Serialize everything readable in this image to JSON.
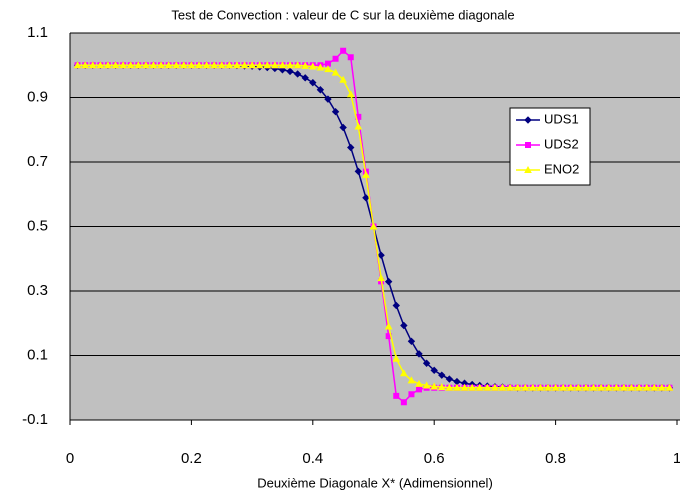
{
  "chart_data": {
    "type": "line",
    "title": "Test de Convection : valeur de C sur la deuxième diagonale",
    "x_label": "Deuxième Diagonale X* (Adimensionnel)",
    "x": [
      0.0125,
      0.025,
      0.0375,
      0.05,
      0.0625,
      0.075,
      0.0875,
      0.1,
      0.1125,
      0.125,
      0.1375,
      0.15,
      0.1625,
      0.175,
      0.1875,
      0.2,
      0.2125,
      0.225,
      0.2375,
      0.25,
      0.2625,
      0.275,
      0.2875,
      0.3,
      0.3125,
      0.325,
      0.3375,
      0.35,
      0.3625,
      0.375,
      0.3875,
      0.4,
      0.4125,
      0.425,
      0.4375,
      0.45,
      0.4625,
      0.475,
      0.4875,
      0.5,
      0.5125,
      0.525,
      0.5375,
      0.55,
      0.5625,
      0.575,
      0.5875,
      0.6,
      0.6125,
      0.625,
      0.6375,
      0.65,
      0.6625,
      0.675,
      0.6875,
      0.7,
      0.7125,
      0.725,
      0.7375,
      0.75,
      0.7625,
      0.775,
      0.7875,
      0.8,
      0.8125,
      0.825,
      0.8375,
      0.85,
      0.8625,
      0.875,
      0.8875,
      0.9,
      0.9125,
      0.925,
      0.9375,
      0.95,
      0.9625,
      0.975,
      0.9875
    ],
    "series": [
      {
        "name": "UDS1",
        "color": "#000080",
        "marker": "diamond",
        "values": [
          1,
          1,
          1,
          1,
          1,
          1,
          1,
          1,
          1,
          1,
          1,
          1,
          1,
          1,
          1,
          1,
          1,
          1,
          1,
          1,
          1,
          0.999,
          0.998,
          0.997,
          0.995,
          0.993,
          0.99,
          0.986,
          0.981,
          0.973,
          0.961,
          0.946,
          0.924,
          0.895,
          0.856,
          0.807,
          0.745,
          0.671,
          0.589,
          0.5,
          0.411,
          0.329,
          0.255,
          0.193,
          0.144,
          0.105,
          0.076,
          0.054,
          0.039,
          0.027,
          0.019,
          0.014,
          0.01,
          0.007,
          0.005,
          0.003,
          0.002,
          0.001,
          0,
          0,
          0,
          0,
          0,
          0,
          0,
          0,
          0,
          0,
          0,
          0,
          0,
          0,
          0,
          0,
          0,
          0,
          0,
          0,
          0
        ]
      },
      {
        "name": "UDS2",
        "color": "#ff00ff",
        "marker": "square",
        "values": [
          1,
          1,
          1,
          1,
          1,
          1,
          1,
          1,
          1,
          1,
          1,
          1,
          1,
          1,
          1,
          1,
          1,
          1,
          1,
          1,
          1,
          1,
          1,
          1,
          1,
          1,
          1,
          1,
          1,
          1,
          1,
          1,
          1,
          1.005,
          1.02,
          1.045,
          1.025,
          0.84,
          0.67,
          0.5,
          0.33,
          0.16,
          -0.025,
          -0.045,
          -0.02,
          -0.005,
          0,
          0,
          0,
          0,
          0,
          0,
          0,
          0,
          0,
          0,
          0,
          0,
          0,
          0,
          0,
          0,
          0,
          0,
          0,
          0,
          0,
          0,
          0,
          0,
          0,
          0,
          0,
          0,
          0,
          0,
          0,
          0,
          0
        ]
      },
      {
        "name": "ENO2",
        "color": "#ffff00",
        "marker": "triangle",
        "values": [
          1,
          1,
          1,
          1,
          1,
          1,
          1,
          1,
          1,
          1,
          1,
          1,
          1,
          1,
          1,
          1,
          1,
          1,
          1,
          1,
          1,
          1,
          1,
          1,
          1,
          1,
          1,
          1,
          1,
          1,
          0.998,
          0.996,
          0.993,
          0.988,
          0.977,
          0.955,
          0.91,
          0.81,
          0.66,
          0.5,
          0.34,
          0.19,
          0.09,
          0.045,
          0.023,
          0.012,
          0.007,
          0.004,
          0.002,
          0,
          0,
          0,
          0,
          0,
          0,
          0,
          0,
          0,
          0,
          0,
          0,
          0,
          0,
          0,
          0,
          0,
          0,
          0,
          0,
          0,
          0,
          0,
          0,
          0,
          0,
          0,
          0,
          0,
          0
        ]
      }
    ],
    "xlim": [
      0,
      1
    ],
    "xticks": [
      0,
      0.2,
      0.4,
      0.6,
      0.8,
      1
    ],
    "ylim": [
      -0.1,
      1.1
    ],
    "yticks": [
      -0.1,
      0.1,
      0.3,
      0.5,
      0.7,
      0.9,
      1.1
    ],
    "grid": true,
    "legend": "right"
  }
}
